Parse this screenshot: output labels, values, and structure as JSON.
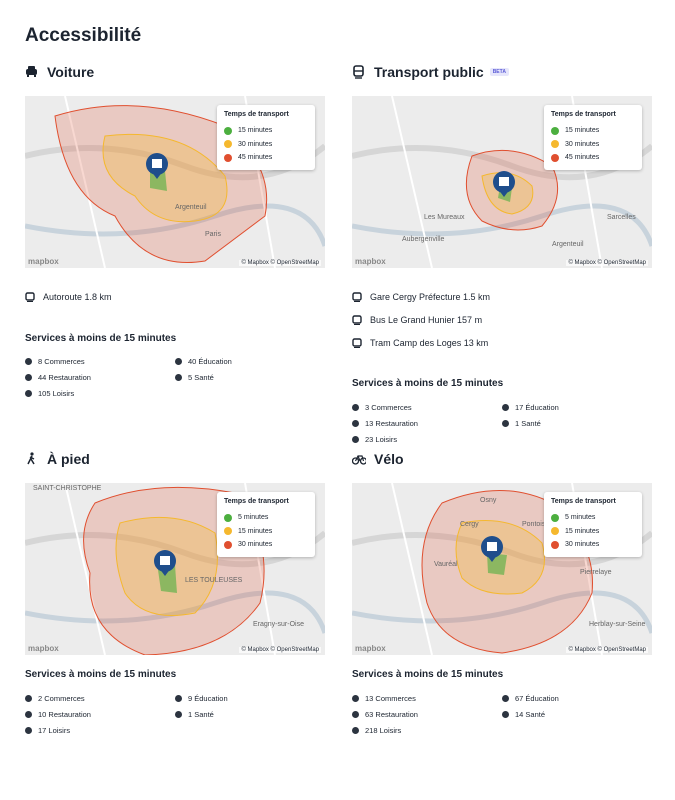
{
  "header": {
    "title": "Accessibilité"
  },
  "sections": [
    {
      "title": "Voiture",
      "map": {
        "legend_title": "Temps de transport",
        "legend": [
          "15 minutes",
          "30 minutes",
          "45 minutes"
        ],
        "attribution": "© Mapbox © OpenStreetMap",
        "logo": "mapbox",
        "places": [
          "Argenteuil",
          "Paris"
        ]
      },
      "access": [
        "Autoroute 1.8 km"
      ],
      "services_title": "Services à moins de 15 minutes",
      "services": [
        "8 Commerces",
        "40 Éducation",
        "44 Restauration",
        "5 Santé",
        "105 Loisirs"
      ]
    },
    {
      "title": "Transport public",
      "badge": "BETA",
      "map": {
        "legend_title": "Temps de transport",
        "legend": [
          "15 minutes",
          "30 minutes",
          "45 minutes"
        ],
        "attribution": "© Mapbox © OpenStreetMap",
        "logo": "mapbox",
        "places": [
          "Les Mureaux",
          "Aubergenville",
          "Argenteuil",
          "Sarcelles"
        ]
      },
      "access": [
        "Gare Cergy Préfecture 1.5 km",
        "Bus Le Grand Hunier 157 m",
        "Tram Camp des Loges 13 km"
      ],
      "services_title": "Services à moins de 15 minutes",
      "services": [
        "3 Commerces",
        "17 Éducation",
        "13 Restauration",
        "1 Santé",
        "23 Loisirs"
      ]
    },
    {
      "title": "À pied",
      "map": {
        "legend_title": "Temps de transport",
        "legend": [
          "5 minutes",
          "15 minutes",
          "30 minutes"
        ],
        "attribution": "© Mapbox © OpenStreetMap",
        "logo": "mapbox",
        "places": [
          "SAINT-CHRISTOPHE",
          "LES TOULEUSES",
          "Eragny-sur-Oise"
        ]
      },
      "access": [],
      "services_title": "Services à moins de 15 minutes",
      "services": [
        "2 Commerces",
        "9 Éducation",
        "10 Restauration",
        "1 Santé",
        "17 Loisirs"
      ]
    },
    {
      "title": "Vélo",
      "map": {
        "legend_title": "Temps de transport",
        "legend": [
          "5 minutes",
          "15 minutes",
          "30 minutes"
        ],
        "attribution": "© Mapbox © OpenStreetMap",
        "logo": "mapbox",
        "places": [
          "Osny",
          "Cergy",
          "Pontoise",
          "Vauréal",
          "Pierrelaye",
          "Herblay-sur-Seine"
        ]
      },
      "access": [],
      "services_title": "Services à moins de 15 minutes",
      "services": [
        "13 Commerces",
        "67 Éducation",
        "63 Restauration",
        "14 Santé",
        "218 Loisirs"
      ]
    }
  ]
}
